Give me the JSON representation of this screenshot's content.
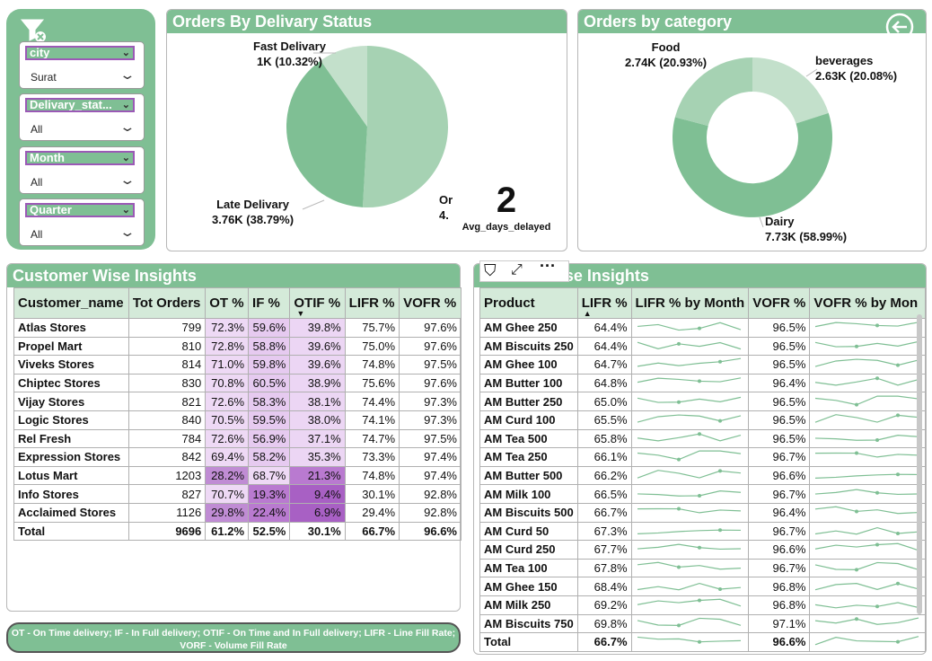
{
  "filters": {
    "slicers": [
      {
        "label": "city",
        "value": "Surat"
      },
      {
        "label": "Delivary_stat...",
        "value": "All"
      },
      {
        "label": "Month",
        "value": "All"
      },
      {
        "label": "Quarter",
        "value": "All"
      }
    ]
  },
  "delivery_status": {
    "title": "Orders By Delivary Status",
    "labels": {
      "fast_name": "Fast Delivary",
      "fast_value": "1K (10.32%)",
      "late_name": "Late Delivary",
      "late_value": "3.76K (38.79%)",
      "ontime_name": "Or",
      "ontime_value": "4."
    },
    "kpi_value": "2",
    "kpi_label": "Avg_days_delayed"
  },
  "category": {
    "title": "Orders by category",
    "labels": {
      "food_name": "Food",
      "food_value": "2.74K (20.93%)",
      "bev_name": "beverages",
      "bev_value": "2.63K (20.08%)",
      "dairy_name": "Dairy",
      "dairy_value": "7.73K (58.99%)"
    }
  },
  "customer": {
    "title": "Customer Wise Insights",
    "headers": [
      "Customer_name",
      "Tot Orders",
      "OT %",
      "IF %",
      "OTIF %",
      "LIFR %",
      "VOFR %"
    ],
    "rows": [
      [
        "Atlas Stores",
        "799",
        "72.3%",
        "59.6%",
        "39.8%",
        "75.7%",
        "97.6%"
      ],
      [
        "Propel Mart",
        "810",
        "72.8%",
        "58.8%",
        "39.6%",
        "75.0%",
        "97.6%"
      ],
      [
        "Viveks Stores",
        "814",
        "71.0%",
        "59.8%",
        "39.6%",
        "74.8%",
        "97.5%"
      ],
      [
        "Chiptec Stores",
        "830",
        "70.8%",
        "60.5%",
        "38.9%",
        "75.6%",
        "97.6%"
      ],
      [
        "Vijay Stores",
        "821",
        "72.6%",
        "58.3%",
        "38.1%",
        "74.4%",
        "97.3%"
      ],
      [
        "Logic Stores",
        "840",
        "70.5%",
        "59.5%",
        "38.0%",
        "74.1%",
        "97.3%"
      ],
      [
        "Rel Fresh",
        "784",
        "72.6%",
        "56.9%",
        "37.1%",
        "74.7%",
        "97.5%"
      ],
      [
        "Expression Stores",
        "842",
        "69.4%",
        "58.2%",
        "35.3%",
        "73.3%",
        "97.4%"
      ],
      [
        "Lotus Mart",
        "1203",
        "28.2%",
        "68.7%",
        "21.3%",
        "74.8%",
        "97.4%"
      ],
      [
        "Info Stores",
        "827",
        "70.7%",
        "19.3%",
        "9.4%",
        "30.1%",
        "92.8%"
      ],
      [
        "Acclaimed Stores",
        "1126",
        "29.8%",
        "22.4%",
        "6.9%",
        "29.4%",
        "92.8%"
      ]
    ],
    "total": [
      "Total",
      "9696",
      "61.2%",
      "52.5%",
      "30.1%",
      "66.7%",
      "96.6%"
    ]
  },
  "product": {
    "title": "Product Wise Insights",
    "headers": [
      "Product",
      "LIFR %",
      "LIFR % by Month",
      "VOFR %",
      "VOFR % by Mon"
    ],
    "rows": [
      [
        "AM Ghee 250",
        "64.4%",
        "96.5%"
      ],
      [
        "AM Biscuits 250",
        "64.4%",
        "96.5%"
      ],
      [
        "AM Ghee 100",
        "64.7%",
        "96.5%"
      ],
      [
        "AM Butter 100",
        "64.8%",
        "96.4%"
      ],
      [
        "AM Butter 250",
        "65.0%",
        "96.5%"
      ],
      [
        "AM Curd 100",
        "65.5%",
        "96.5%"
      ],
      [
        "AM Tea 500",
        "65.8%",
        "96.5%"
      ],
      [
        "AM Tea 250",
        "66.1%",
        "96.7%"
      ],
      [
        "AM Butter 500",
        "66.2%",
        "96.6%"
      ],
      [
        "AM Milk 100",
        "66.5%",
        "96.7%"
      ],
      [
        "AM Biscuits 500",
        "66.7%",
        "96.4%"
      ],
      [
        "AM Curd 50",
        "67.3%",
        "96.7%"
      ],
      [
        "AM Curd 250",
        "67.7%",
        "96.6%"
      ],
      [
        "AM Tea 100",
        "67.8%",
        "96.7%"
      ],
      [
        "AM Ghee 150",
        "68.4%",
        "96.8%"
      ],
      [
        "AM Milk 250",
        "69.2%",
        "96.8%"
      ],
      [
        "AM Biscuits 750",
        "69.8%",
        "97.1%"
      ]
    ],
    "total": [
      "Total",
      "66.7%",
      "96.6%"
    ]
  },
  "footnote": "OT - On Time delivery; IF - In Full delivery; OTIF - On Time and In Full delivery; LIFR - Line Fill Rate; VORF - Volume Fill Rate",
  "colors": {
    "accent": "#7fbf94",
    "header_bg": "#d4ead9",
    "heat_light": "#ecd6f4",
    "heat_dark": "#a860c4",
    "sparkline": "#7fbf94"
  }
}
